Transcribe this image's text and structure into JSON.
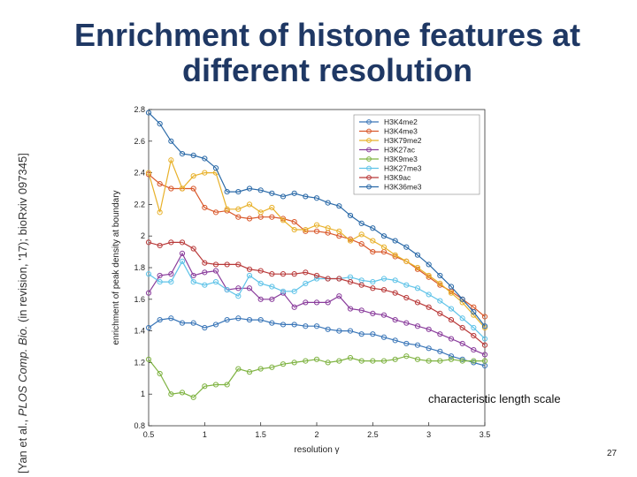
{
  "slide": {
    "title_line1": "Enrichment of histone features at",
    "title_line2": "different resolution",
    "citation_prefix": "[Yan et al., ",
    "citation_journal": "PLOS Comp. Bio.",
    "citation_suffix": " (in revision, '17); bioRxiv 097345]",
    "annotation": "characteristic length scale",
    "page_number": "27",
    "title_color": "#1f3864"
  },
  "chart_data": {
    "type": "line",
    "title": "",
    "xlabel": "resolution γ",
    "ylabel": "enrichment of peak density at boundary",
    "xlim": [
      0.5,
      3.5
    ],
    "ylim": [
      0.8,
      2.8
    ],
    "xticks": [
      "0.5",
      "1",
      "1.5",
      "2",
      "2.5",
      "3",
      "3.5"
    ],
    "yticks": [
      "0.8",
      "1",
      "1.2",
      "1.4",
      "1.6",
      "1.8",
      "2",
      "2.2",
      "2.4",
      "2.6",
      "2.8"
    ],
    "legend_position": "top-right",
    "marker": "circle",
    "x": [
      0.5,
      0.6,
      0.7,
      0.8,
      0.9,
      1.0,
      1.1,
      1.2,
      1.3,
      1.4,
      1.5,
      1.6,
      1.7,
      1.8,
      1.9,
      2.0,
      2.1,
      2.2,
      2.3,
      2.4,
      2.5,
      2.6,
      2.7,
      2.8,
      2.9,
      3.0,
      3.1,
      3.2,
      3.3,
      3.4,
      3.5
    ],
    "series": [
      {
        "name": "H3K4me2",
        "color": "#3a76b8",
        "values": [
          1.42,
          1.47,
          1.48,
          1.45,
          1.45,
          1.42,
          1.44,
          1.47,
          1.48,
          1.47,
          1.47,
          1.45,
          1.44,
          1.44,
          1.43,
          1.43,
          1.41,
          1.4,
          1.4,
          1.38,
          1.38,
          1.36,
          1.34,
          1.32,
          1.31,
          1.29,
          1.27,
          1.24,
          1.22,
          1.2,
          1.18
        ]
      },
      {
        "name": "H3K4me3",
        "color": "#d9582b",
        "values": [
          2.39,
          2.33,
          2.3,
          2.3,
          2.3,
          2.18,
          2.15,
          2.16,
          2.12,
          2.11,
          2.12,
          2.12,
          2.11,
          2.09,
          2.03,
          2.03,
          2.02,
          2.0,
          1.98,
          1.95,
          1.9,
          1.9,
          1.87,
          1.84,
          1.79,
          1.74,
          1.69,
          1.65,
          1.6,
          1.55,
          1.49
        ]
      },
      {
        "name": "H3K79me2",
        "color": "#e8b12a",
        "values": [
          2.4,
          2.15,
          2.48,
          2.3,
          2.38,
          2.4,
          2.4,
          2.17,
          2.17,
          2.2,
          2.15,
          2.18,
          2.1,
          2.04,
          2.04,
          2.07,
          2.05,
          2.03,
          1.97,
          2.01,
          1.97,
          1.93,
          1.88,
          1.84,
          1.8,
          1.75,
          1.7,
          1.64,
          1.58,
          1.5,
          1.42
        ]
      },
      {
        "name": "H3K27ac",
        "color": "#8a3d9c",
        "values": [
          1.64,
          1.75,
          1.76,
          1.89,
          1.75,
          1.77,
          1.78,
          1.66,
          1.67,
          1.67,
          1.6,
          1.6,
          1.64,
          1.55,
          1.58,
          1.58,
          1.58,
          1.62,
          1.54,
          1.53,
          1.51,
          1.5,
          1.47,
          1.45,
          1.43,
          1.41,
          1.38,
          1.35,
          1.32,
          1.28,
          1.25
        ]
      },
      {
        "name": "H3K9me3",
        "color": "#7fb342",
        "values": [
          1.22,
          1.13,
          1.0,
          1.01,
          0.98,
          1.05,
          1.06,
          1.06,
          1.16,
          1.14,
          1.16,
          1.17,
          1.19,
          1.2,
          1.21,
          1.22,
          1.2,
          1.21,
          1.23,
          1.21,
          1.21,
          1.21,
          1.22,
          1.24,
          1.22,
          1.21,
          1.21,
          1.22,
          1.21,
          1.21,
          1.21
        ]
      },
      {
        "name": "H3K27me3",
        "color": "#5fc3e8",
        "values": [
          1.76,
          1.71,
          1.71,
          1.84,
          1.71,
          1.69,
          1.71,
          1.66,
          1.62,
          1.75,
          1.7,
          1.68,
          1.65,
          1.65,
          1.7,
          1.73,
          1.73,
          1.73,
          1.74,
          1.72,
          1.71,
          1.73,
          1.72,
          1.69,
          1.67,
          1.63,
          1.59,
          1.54,
          1.48,
          1.42,
          1.35
        ]
      },
      {
        "name": "H3K9ac",
        "color": "#b93a3a",
        "values": [
          1.96,
          1.94,
          1.96,
          1.96,
          1.92,
          1.83,
          1.82,
          1.82,
          1.82,
          1.79,
          1.78,
          1.76,
          1.76,
          1.76,
          1.77,
          1.75,
          1.73,
          1.73,
          1.71,
          1.69,
          1.67,
          1.66,
          1.64,
          1.61,
          1.58,
          1.55,
          1.51,
          1.47,
          1.42,
          1.37,
          1.31
        ]
      },
      {
        "name": "H3K36me3",
        "color": "#2b6aa8",
        "values": [
          2.78,
          2.71,
          2.6,
          2.52,
          2.51,
          2.49,
          2.43,
          2.28,
          2.28,
          2.3,
          2.29,
          2.27,
          2.25,
          2.27,
          2.25,
          2.24,
          2.21,
          2.19,
          2.13,
          2.08,
          2.05,
          2.0,
          1.97,
          1.93,
          1.88,
          1.82,
          1.75,
          1.68,
          1.6,
          1.52,
          1.43
        ]
      }
    ]
  }
}
